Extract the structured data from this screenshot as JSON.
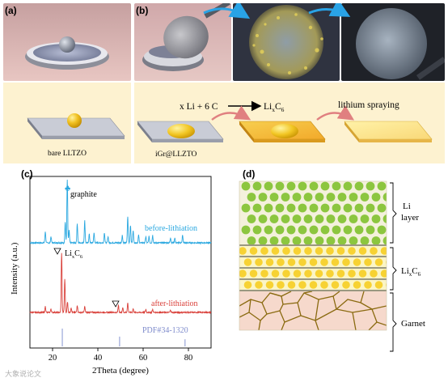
{
  "panels": {
    "a": {
      "label": "(a)",
      "caption": "bare LLTZO"
    },
    "b": {
      "label": "(b)",
      "caption": "iGr@LLZTO",
      "reaction_left": "x Li + 6 C",
      "reaction_right_base": "Li",
      "reaction_right_sub_x": "x",
      "reaction_right_C": "C",
      "reaction_right_sub_6": "6",
      "spray_label": "lithium spraying"
    },
    "c": {
      "label": "(c)",
      "ylabel": "Intensity (a.u.)",
      "xlabel": "2Theta (degree)",
      "graphite_label": "graphite",
      "lic6_base": "Li",
      "lic6_sub_x": "x",
      "lic6_C": "C",
      "lic6_sub_6": "6",
      "pdf_label": "PDF#34-1320"
    },
    "d": {
      "label": "(d)",
      "layer1": "Li",
      "layer1b": "layer",
      "layer2_base": "Li",
      "layer2_sub_x": "x",
      "layer2_C": "C",
      "layer2_sub_6": "6",
      "layer3": "Garnet"
    }
  },
  "colors": {
    "blue_trace": "#2aa8e0",
    "red_trace": "#d9403a",
    "pdf_sticks": "#9aa6d8",
    "lithium_gold": "#f0c020",
    "green_dot": "#8cc63f",
    "yellow_dot": "#f7d233",
    "garnet_fill": "#f6d9cc",
    "garnet_line": "#8a6a10",
    "cream_bg": "#fdf2d0"
  },
  "watermark": "大象说论文",
  "chart_data": {
    "type": "line",
    "xlabel": "2Theta (degree)",
    "ylabel": "Intensity (a.u.)",
    "xlim": [
      10,
      90
    ],
    "xticks": [
      20,
      40,
      60,
      80
    ],
    "series": [
      {
        "name": "before-lithiation",
        "peaks": [
          [
            16.8,
            0.18
          ],
          [
            19.3,
            0.1
          ],
          [
            25.6,
            0.33
          ],
          [
            26.5,
            1.0
          ],
          [
            27.3,
            0.2
          ],
          [
            30.9,
            0.3
          ],
          [
            34.2,
            0.35
          ],
          [
            36.2,
            0.14
          ],
          [
            38.3,
            0.16
          ],
          [
            42.9,
            0.16
          ],
          [
            44.5,
            0.1
          ],
          [
            50.8,
            0.12
          ],
          [
            53.2,
            0.42
          ],
          [
            54.4,
            0.28
          ],
          [
            55.6,
            0.2
          ],
          [
            58.0,
            0.12
          ],
          [
            61.2,
            0.1
          ],
          [
            62.6,
            0.1
          ],
          [
            64.2,
            0.12
          ],
          [
            72.1,
            0.08
          ],
          [
            74.0,
            0.08
          ],
          [
            77.4,
            0.12
          ]
        ]
      },
      {
        "name": "after-lithiation",
        "peaks": [
          [
            16.8,
            0.1
          ],
          [
            19.3,
            0.06
          ],
          [
            24.0,
            1.0
          ],
          [
            25.4,
            0.55
          ],
          [
            26.6,
            0.18
          ],
          [
            28.2,
            0.08
          ],
          [
            30.9,
            0.12
          ],
          [
            34.2,
            0.1
          ],
          [
            49.1,
            0.12
          ],
          [
            51.0,
            0.08
          ],
          [
            53.2,
            0.16
          ],
          [
            55.6,
            0.06
          ],
          [
            61.2,
            0.05
          ],
          [
            64.2,
            0.05
          ],
          [
            72.1,
            0.04
          ]
        ]
      },
      {
        "name": "PDF#34-1320",
        "sticks": [
          [
            24.3,
            1.0
          ],
          [
            49.6,
            0.55
          ],
          [
            78.5,
            0.4
          ]
        ]
      }
    ]
  }
}
